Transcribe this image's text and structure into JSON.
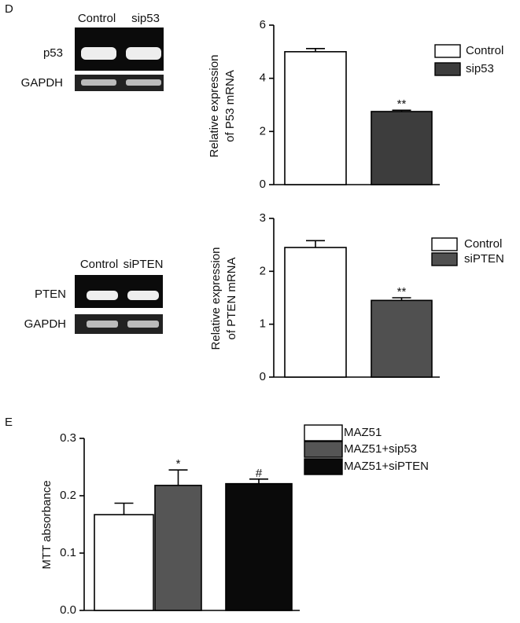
{
  "panel_labels": [
    "D",
    "E"
  ],
  "gels": [
    {
      "lanes": [
        "Control",
        "sip53"
      ],
      "rows": [
        "p53",
        "GAPDH"
      ]
    },
    {
      "lanes": [
        "Control",
        "siPTEN"
      ],
      "rows": [
        "PTEN",
        "GAPDH"
      ]
    }
  ],
  "chart_data": [
    {
      "type": "bar",
      "y_label": [
        "Relative expression",
        "of P53 mRNA"
      ],
      "ylim": [
        0,
        6
      ],
      "yticks": [
        0,
        2,
        4,
        6
      ],
      "series": [
        {
          "name": "Control",
          "color": "#ffffff",
          "values": [
            5.0
          ],
          "errors": [
            0.12
          ]
        },
        {
          "name": "sip53",
          "color": "#3d3d3d",
          "values": [
            2.75
          ],
          "errors": [
            0.05
          ],
          "label": "**"
        }
      ]
    },
    {
      "type": "bar",
      "y_label": [
        "Relative expression",
        "of PTEN mRNA"
      ],
      "ylim": [
        0,
        3
      ],
      "yticks": [
        0,
        1,
        2,
        3
      ],
      "series": [
        {
          "name": "Control",
          "color": "#ffffff",
          "values": [
            2.45
          ],
          "errors": [
            0.13
          ]
        },
        {
          "name": "siPTEN",
          "color": "#505050",
          "values": [
            1.45
          ],
          "errors": [
            0.05
          ],
          "label": "**"
        }
      ]
    },
    {
      "type": "bar",
      "y_label": [
        "MTT absorbance"
      ],
      "ylim": [
        0,
        0.3
      ],
      "yticks": [
        {
          "value": 0,
          "label": "0.0"
        },
        0.1,
        0.2,
        0.3
      ],
      "series": [
        {
          "name": "MAZ51",
          "color": "#ffffff",
          "values": [
            0.167
          ],
          "errors": [
            0.02
          ]
        },
        {
          "name": "MAZ51+sip53",
          "color": "#555555",
          "values": [
            0.218
          ],
          "errors": [
            0.027
          ],
          "label": "*"
        },
        {
          "name": "MAZ51+siPTEN",
          "color": "#0a0a0a",
          "values": [
            0.221
          ],
          "errors": [
            0.008
          ],
          "label": "#"
        }
      ]
    }
  ]
}
